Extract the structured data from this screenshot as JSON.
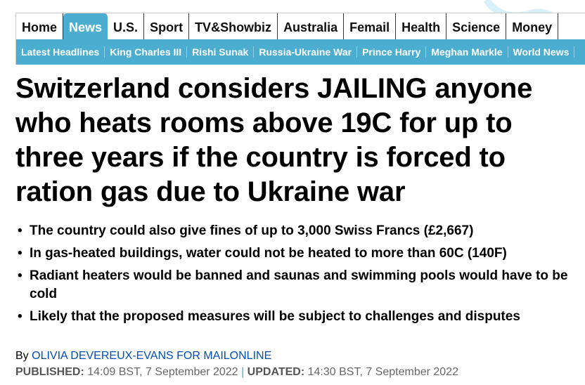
{
  "nav": {
    "items": [
      "Home",
      "News",
      "U.S.",
      "Sport",
      "TV&Showbiz",
      "Australia",
      "Femail",
      "Health",
      "Science",
      "Money"
    ],
    "active": "News"
  },
  "subnav": {
    "items": [
      "Latest Headlines",
      "King Charles III",
      "Rishi Sunak",
      "Russia-Ukraine War",
      "Prince Harry",
      "Meghan Markle",
      "World News"
    ]
  },
  "headline": "Switzerland considers JAILING anyone who heats rooms above 19C for up to three years if the country is forced to ration gas due to Ukraine war",
  "bullets": [
    "The country could also give fines of up to 3,000 Swiss Francs (£2,667)",
    "In gas-heated buildings, water could not be heated to more than 60C (140F)",
    "Radiant heaters would be banned and saunas and swimming pools would have to be cold",
    "Likely that the proposed measures will be subject to challenges and disputes"
  ],
  "byline": {
    "prefix": "By",
    "author": "OLIVIA DEVEREUX-EVANS FOR MAILONLINE"
  },
  "dates": {
    "published_label": "PUBLISHED:",
    "published": "14:09 BST, 7 September 2022",
    "updated_label": "UPDATED:",
    "updated": "14:30 BST, 7 September 2022",
    "sep": "|"
  },
  "colors": {
    "accent": "#4baed0",
    "link": "#004db3"
  }
}
